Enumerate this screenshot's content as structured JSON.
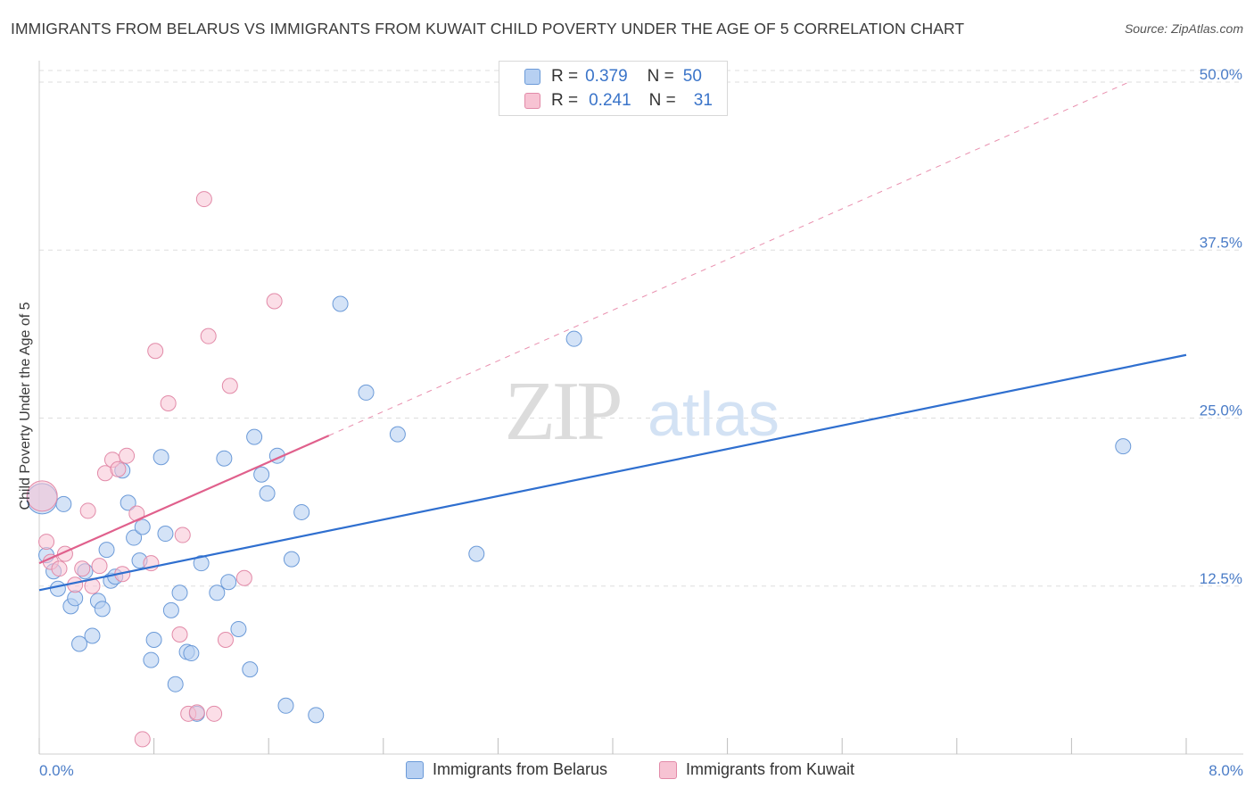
{
  "title": "IMMIGRANTS FROM BELARUS VS IMMIGRANTS FROM KUWAIT CHILD POVERTY UNDER THE AGE OF 5 CORRELATION CHART",
  "source": "Source: ZipAtlas.com",
  "watermark": {
    "zip": "ZIP",
    "atlas": "atlas"
  },
  "legend": {
    "r_label": "R =",
    "n_label": "N =",
    "series": [
      {
        "name": "Immigrants from Belarus",
        "r": "0.379",
        "n": "50"
      },
      {
        "name": "Immigrants from Kuwait",
        "r": "0.241",
        "n": "31"
      }
    ]
  },
  "colors": {
    "belarus_fill": "#b7d0f2",
    "belarus_stroke": "#6b9ad8",
    "belarus_line": "#2f6fcf",
    "kuwait_fill": "#f7c3d3",
    "kuwait_stroke": "#e28aa8",
    "kuwait_line": "#e0608c",
    "tick_text": "#4a7cc7",
    "grid": "#dddddd"
  },
  "chart_data": {
    "type": "scatter",
    "title": "IMMIGRANTS FROM BELARUS VS IMMIGRANTS FROM KUWAIT CHILD POVERTY UNDER THE AGE OF 5 CORRELATION CHART",
    "xlabel": "",
    "ylabel": "Child Poverty Under the Age of 5",
    "xlim": [
      0,
      8
    ],
    "ylim": [
      0,
      51
    ],
    "x_tick_labels": {
      "left": "0.0%",
      "right": "8.0%"
    },
    "y_ticks": [
      {
        "value": 12.5,
        "label": "12.5%"
      },
      {
        "value": 25.0,
        "label": "25.0%"
      },
      {
        "value": 37.5,
        "label": "37.5%"
      },
      {
        "value": 50.0,
        "label": "50.0%"
      }
    ],
    "series": [
      {
        "name": "Immigrants from Belarus",
        "points": [
          {
            "x": 0.02,
            "y": 19.0,
            "big": true
          },
          {
            "x": 0.05,
            "y": 14.8
          },
          {
            "x": 0.1,
            "y": 13.6
          },
          {
            "x": 0.13,
            "y": 12.3
          },
          {
            "x": 0.17,
            "y": 18.6
          },
          {
            "x": 0.22,
            "y": 11.0
          },
          {
            "x": 0.25,
            "y": 11.6
          },
          {
            "x": 0.28,
            "y": 8.2
          },
          {
            "x": 0.32,
            "y": 13.6
          },
          {
            "x": 0.37,
            "y": 8.8
          },
          {
            "x": 0.41,
            "y": 11.4
          },
          {
            "x": 0.44,
            "y": 10.8
          },
          {
            "x": 0.47,
            "y": 15.2
          },
          {
            "x": 0.5,
            "y": 12.9
          },
          {
            "x": 0.53,
            "y": 13.2
          },
          {
            "x": 0.58,
            "y": 21.1
          },
          {
            "x": 0.62,
            "y": 18.7
          },
          {
            "x": 0.66,
            "y": 16.1
          },
          {
            "x": 0.7,
            "y": 14.4
          },
          {
            "x": 0.72,
            "y": 16.9
          },
          {
            "x": 0.78,
            "y": 7.0
          },
          {
            "x": 0.8,
            "y": 8.5
          },
          {
            "x": 0.85,
            "y": 22.1
          },
          {
            "x": 0.88,
            "y": 16.4
          },
          {
            "x": 0.92,
            "y": 10.7
          },
          {
            "x": 0.95,
            "y": 5.2
          },
          {
            "x": 0.98,
            "y": 12.0
          },
          {
            "x": 1.03,
            "y": 7.6
          },
          {
            "x": 1.06,
            "y": 7.5
          },
          {
            "x": 1.1,
            "y": 3.0
          },
          {
            "x": 1.13,
            "y": 14.2
          },
          {
            "x": 1.24,
            "y": 12.0
          },
          {
            "x": 1.29,
            "y": 22.0
          },
          {
            "x": 1.32,
            "y": 12.8
          },
          {
            "x": 1.39,
            "y": 9.3
          },
          {
            "x": 1.47,
            "y": 6.3
          },
          {
            "x": 1.5,
            "y": 23.6
          },
          {
            "x": 1.55,
            "y": 20.8
          },
          {
            "x": 1.59,
            "y": 19.4
          },
          {
            "x": 1.66,
            "y": 22.2
          },
          {
            "x": 1.72,
            "y": 3.6
          },
          {
            "x": 1.76,
            "y": 14.5
          },
          {
            "x": 1.83,
            "y": 18.0
          },
          {
            "x": 1.93,
            "y": 2.9
          },
          {
            "x": 2.1,
            "y": 33.5
          },
          {
            "x": 2.28,
            "y": 26.9
          },
          {
            "x": 2.5,
            "y": 23.8
          },
          {
            "x": 3.05,
            "y": 14.9
          },
          {
            "x": 3.73,
            "y": 30.9
          },
          {
            "x": 7.56,
            "y": 22.9
          }
        ],
        "trend": {
          "x0": 0.0,
          "y0": 12.2,
          "x1": 8.0,
          "y1": 29.7
        }
      },
      {
        "name": "Immigrants from Kuwait",
        "points": [
          {
            "x": 0.02,
            "y": 19.2,
            "big": true
          },
          {
            "x": 0.05,
            "y": 15.8
          },
          {
            "x": 0.08,
            "y": 14.3
          },
          {
            "x": 0.14,
            "y": 13.8
          },
          {
            "x": 0.18,
            "y": 14.9
          },
          {
            "x": 0.25,
            "y": 12.6
          },
          {
            "x": 0.3,
            "y": 13.8
          },
          {
            "x": 0.34,
            "y": 18.1
          },
          {
            "x": 0.37,
            "y": 12.5
          },
          {
            "x": 0.42,
            "y": 14.0
          },
          {
            "x": 0.46,
            "y": 20.9
          },
          {
            "x": 0.51,
            "y": 21.9
          },
          {
            "x": 0.55,
            "y": 21.2
          },
          {
            "x": 0.58,
            "y": 13.4
          },
          {
            "x": 0.61,
            "y": 22.2
          },
          {
            "x": 0.68,
            "y": 17.9
          },
          {
            "x": 0.72,
            "y": 1.1
          },
          {
            "x": 0.78,
            "y": 14.2
          },
          {
            "x": 0.81,
            "y": 30.0
          },
          {
            "x": 0.9,
            "y": 26.1
          },
          {
            "x": 0.98,
            "y": 8.9
          },
          {
            "x": 1.0,
            "y": 16.3
          },
          {
            "x": 1.04,
            "y": 3.0
          },
          {
            "x": 1.1,
            "y": 3.1
          },
          {
            "x": 1.15,
            "y": 41.3
          },
          {
            "x": 1.18,
            "y": 31.1
          },
          {
            "x": 1.22,
            "y": 3.0
          },
          {
            "x": 1.3,
            "y": 8.5
          },
          {
            "x": 1.33,
            "y": 27.4
          },
          {
            "x": 1.43,
            "y": 13.1
          },
          {
            "x": 1.64,
            "y": 33.7
          }
        ],
        "trend": {
          "x0": 0.0,
          "y0": 14.2,
          "x1": 2.02,
          "y1": 23.7
        },
        "trend_extension": {
          "x1": 7.6,
          "y1": 50.0
        }
      }
    ]
  }
}
